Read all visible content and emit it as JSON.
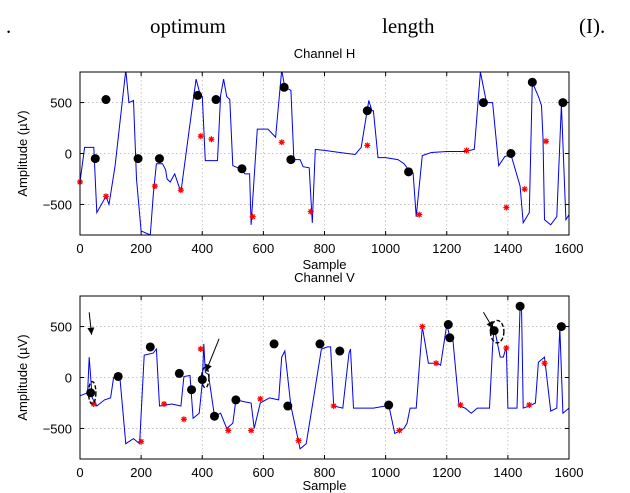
{
  "text_fragment": {
    "period": ".",
    "word1": "optimum",
    "word2": "length",
    "symbol": "(I)."
  },
  "colors": {
    "signal": "#0000ee",
    "marker_primary": "#000000",
    "marker_secondary": "#ff0000"
  },
  "chart_data": [
    {
      "type": "line",
      "title": "Channel H",
      "xlabel": "Sample",
      "ylabel": "Amplitude (µV)",
      "xlim": [
        0,
        1600
      ],
      "ylim": [
        -800,
        800
      ],
      "xticks": [
        0,
        200,
        400,
        600,
        800,
        1000,
        1200,
        1400,
        1600
      ],
      "yticks": [
        -500,
        0,
        500
      ],
      "grid": true,
      "signal": [
        [
          0,
          -280
        ],
        [
          15,
          60
        ],
        [
          45,
          60
        ],
        [
          55,
          -580
        ],
        [
          85,
          -420
        ],
        [
          95,
          -500
        ],
        [
          115,
          -120
        ],
        [
          150,
          820
        ],
        [
          160,
          500
        ],
        [
          175,
          520
        ],
        [
          185,
          -250
        ],
        [
          200,
          -760
        ],
        [
          230,
          -800
        ],
        [
          240,
          -400
        ],
        [
          250,
          -100
        ],
        [
          270,
          -100
        ],
        [
          280,
          -160
        ],
        [
          285,
          -250
        ],
        [
          295,
          -280
        ],
        [
          310,
          -200
        ],
        [
          330,
          -380
        ],
        [
          370,
          520
        ],
        [
          380,
          730
        ],
        [
          395,
          560
        ],
        [
          400,
          560
        ],
        [
          410,
          -70
        ],
        [
          450,
          -70
        ],
        [
          460,
          570
        ],
        [
          470,
          730
        ],
        [
          480,
          560
        ],
        [
          490,
          530
        ],
        [
          500,
          -120
        ],
        [
          525,
          -150
        ],
        [
          540,
          -200
        ],
        [
          555,
          -200
        ],
        [
          560,
          -700
        ],
        [
          580,
          240
        ],
        [
          615,
          240
        ],
        [
          640,
          160
        ],
        [
          660,
          820
        ],
        [
          670,
          650
        ],
        [
          690,
          620
        ],
        [
          700,
          -60
        ],
        [
          720,
          -60
        ],
        [
          730,
          -130
        ],
        [
          750,
          -140
        ],
        [
          760,
          -680
        ],
        [
          770,
          40
        ],
        [
          800,
          30
        ],
        [
          850,
          10
        ],
        [
          900,
          -10
        ],
        [
          920,
          60
        ],
        [
          945,
          520
        ],
        [
          955,
          420
        ],
        [
          960,
          420
        ],
        [
          975,
          -40
        ],
        [
          1000,
          -40
        ],
        [
          1040,
          -60
        ],
        [
          1060,
          -100
        ],
        [
          1080,
          -180
        ],
        [
          1090,
          -190
        ],
        [
          1100,
          -620
        ],
        [
          1120,
          -20
        ],
        [
          1150,
          10
        ],
        [
          1200,
          20
        ],
        [
          1260,
          20
        ],
        [
          1290,
          40
        ],
        [
          1310,
          800
        ],
        [
          1330,
          500
        ],
        [
          1350,
          500
        ],
        [
          1370,
          -120
        ],
        [
          1390,
          -30
        ],
        [
          1410,
          -10
        ],
        [
          1440,
          -320
        ],
        [
          1450,
          -680
        ],
        [
          1470,
          -580
        ],
        [
          1480,
          700
        ],
        [
          1500,
          560
        ],
        [
          1510,
          470
        ],
        [
          1515,
          150
        ],
        [
          1520,
          -650
        ],
        [
          1540,
          -700
        ],
        [
          1560,
          -620
        ],
        [
          1575,
          480
        ],
        [
          1590,
          -650
        ],
        [
          1600,
          -600
        ]
      ],
      "markers_primary": [
        [
          50,
          -50
        ],
        [
          85,
          530
        ],
        [
          190,
          -50
        ],
        [
          260,
          -50
        ],
        [
          385,
          570
        ],
        [
          445,
          530
        ],
        [
          530,
          -150
        ],
        [
          668,
          650
        ],
        [
          690,
          -60
        ],
        [
          940,
          420
        ],
        [
          1075,
          -180
        ],
        [
          1320,
          500
        ],
        [
          1410,
          0
        ],
        [
          1480,
          700
        ],
        [
          1580,
          500
        ]
      ],
      "markers_secondary": [
        [
          0,
          -280
        ],
        [
          85,
          -420
        ],
        [
          245,
          -320
        ],
        [
          330,
          -360
        ],
        [
          395,
          170
        ],
        [
          430,
          140
        ],
        [
          565,
          -620
        ],
        [
          660,
          110
        ],
        [
          755,
          -570
        ],
        [
          940,
          80
        ],
        [
          1110,
          -600
        ],
        [
          1265,
          30
        ],
        [
          1395,
          -530
        ],
        [
          1455,
          -350
        ],
        [
          1525,
          120
        ]
      ],
      "annotations": []
    },
    {
      "type": "line",
      "title": "Channel V",
      "xlabel": "Sample",
      "ylabel": "Amplitude (µV)",
      "xlim": [
        0,
        1600
      ],
      "ylim": [
        -800,
        800
      ],
      "xticks": [
        0,
        200,
        400,
        600,
        800,
        1000,
        1200,
        1400,
        1600
      ],
      "yticks": [
        -500,
        0,
        500
      ],
      "grid": true,
      "signal": [
        [
          0,
          -180
        ],
        [
          25,
          -150
        ],
        [
          30,
          200
        ],
        [
          40,
          -200
        ],
        [
          55,
          -280
        ],
        [
          80,
          -220
        ],
        [
          100,
          -200
        ],
        [
          110,
          0
        ],
        [
          130,
          20
        ],
        [
          150,
          -650
        ],
        [
          175,
          -600
        ],
        [
          195,
          -650
        ],
        [
          210,
          220
        ],
        [
          240,
          240
        ],
        [
          250,
          280
        ],
        [
          260,
          -280
        ],
        [
          300,
          -260
        ],
        [
          330,
          -280
        ],
        [
          340,
          10
        ],
        [
          360,
          20
        ],
        [
          370,
          -400
        ],
        [
          390,
          -350
        ],
        [
          400,
          -50
        ],
        [
          405,
          330
        ],
        [
          410,
          50
        ],
        [
          420,
          30
        ],
        [
          440,
          -380
        ],
        [
          460,
          -350
        ],
        [
          480,
          -500
        ],
        [
          500,
          -450
        ],
        [
          510,
          -220
        ],
        [
          540,
          -240
        ],
        [
          560,
          -250
        ],
        [
          570,
          -500
        ],
        [
          590,
          -250
        ],
        [
          620,
          -200
        ],
        [
          650,
          -220
        ],
        [
          660,
          200
        ],
        [
          670,
          260
        ],
        [
          690,
          -280
        ],
        [
          720,
          -700
        ],
        [
          740,
          -650
        ],
        [
          760,
          -280
        ],
        [
          790,
          280
        ],
        [
          810,
          300
        ],
        [
          820,
          300
        ],
        [
          830,
          -280
        ],
        [
          860,
          -300
        ],
        [
          880,
          240
        ],
        [
          885,
          280
        ],
        [
          895,
          -300
        ],
        [
          910,
          -300
        ],
        [
          960,
          -300
        ],
        [
          1000,
          -280
        ],
        [
          1010,
          -270
        ],
        [
          1030,
          -550
        ],
        [
          1060,
          -500
        ],
        [
          1070,
          -450
        ],
        [
          1080,
          -300
        ],
        [
          1100,
          -300
        ],
        [
          1120,
          500
        ],
        [
          1140,
          140
        ],
        [
          1170,
          140
        ],
        [
          1180,
          120
        ],
        [
          1200,
          520
        ],
        [
          1210,
          400
        ],
        [
          1220,
          370
        ],
        [
          1240,
          -280
        ],
        [
          1260,
          -300
        ],
        [
          1280,
          -350
        ],
        [
          1300,
          -300
        ],
        [
          1340,
          -300
        ],
        [
          1350,
          300
        ],
        [
          1355,
          500
        ],
        [
          1375,
          200
        ],
        [
          1385,
          200
        ],
        [
          1395,
          300
        ],
        [
          1400,
          -300
        ],
        [
          1430,
          -300
        ],
        [
          1440,
          700
        ],
        [
          1445,
          650
        ],
        [
          1450,
          -300
        ],
        [
          1470,
          -280
        ],
        [
          1490,
          -250
        ],
        [
          1500,
          150
        ],
        [
          1520,
          200
        ],
        [
          1540,
          -330
        ],
        [
          1560,
          -300
        ],
        [
          1570,
          500
        ],
        [
          1580,
          -350
        ],
        [
          1600,
          -300
        ]
      ],
      "markers_primary": [
        [
          35,
          -150
        ],
        [
          125,
          10
        ],
        [
          230,
          300
        ],
        [
          325,
          40
        ],
        [
          365,
          -120
        ],
        [
          400,
          -20
        ],
        [
          440,
          -380
        ],
        [
          510,
          -220
        ],
        [
          635,
          330
        ],
        [
          680,
          -280
        ],
        [
          785,
          330
        ],
        [
          850,
          260
        ],
        [
          1010,
          -270
        ],
        [
          1205,
          520
        ],
        [
          1210,
          390
        ],
        [
          1355,
          460
        ],
        [
          1440,
          700
        ],
        [
          1575,
          500
        ]
      ],
      "markers_secondary": [
        [
          45,
          -260
        ],
        [
          200,
          -630
        ],
        [
          275,
          -260
        ],
        [
          340,
          -410
        ],
        [
          395,
          280
        ],
        [
          485,
          -520
        ],
        [
          560,
          -520
        ],
        [
          590,
          -210
        ],
        [
          715,
          -620
        ],
        [
          830,
          -280
        ],
        [
          1045,
          -520
        ],
        [
          1120,
          500
        ],
        [
          1165,
          140
        ],
        [
          1245,
          -270
        ],
        [
          1395,
          290
        ],
        [
          1470,
          -270
        ],
        [
          1520,
          140
        ]
      ],
      "annotations": [
        {
          "kind": "arrow",
          "from": [
            30,
            640
          ],
          "to": [
            38,
            420
          ]
        },
        {
          "kind": "ellipse",
          "center": [
            40,
            -150
          ],
          "radii": [
            12,
            110
          ]
        },
        {
          "kind": "arrow",
          "from": [
            455,
            380
          ],
          "to": [
            412,
            60
          ]
        },
        {
          "kind": "ellipse",
          "center": [
            410,
            0
          ],
          "radii": [
            12,
            100
          ]
        },
        {
          "kind": "arrow",
          "from": [
            1320,
            640
          ],
          "to": [
            1352,
            480
          ]
        },
        {
          "kind": "ellipse",
          "center": [
            1365,
            450
          ],
          "radii": [
            22,
            110
          ]
        }
      ]
    }
  ]
}
